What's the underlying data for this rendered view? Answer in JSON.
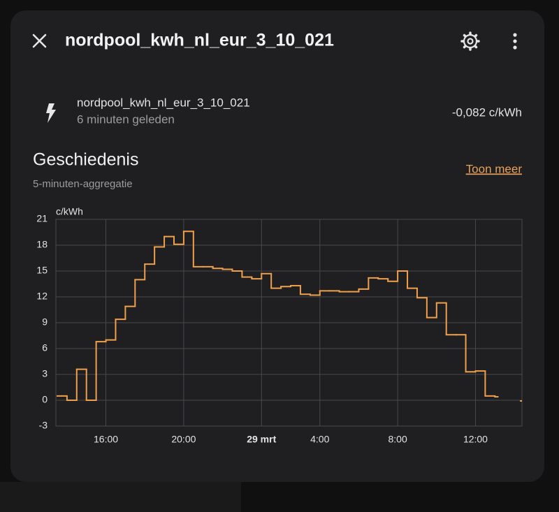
{
  "header": {
    "title": "nordpool_kwh_nl_eur_3_10_021"
  },
  "entity": {
    "name": "nordpool_kwh_nl_eur_3_10_021",
    "last_changed": "6 minuten geleden",
    "state": "-0,082 c/kWh"
  },
  "history": {
    "title": "Geschiedenis",
    "subtitle": "5-minuten-aggregatie",
    "more_link": "Toon meer"
  },
  "chart_data": {
    "type": "line",
    "step": true,
    "y_label": "c/kWh",
    "color": "#f0a04b",
    "grid": true,
    "x": [
      13.5,
      14.0,
      14.5,
      15.0,
      15.5,
      16.0,
      16.5,
      17.0,
      17.5,
      18.0,
      18.5,
      19.0,
      19.5,
      20.0,
      20.5,
      21.0,
      21.5,
      22.0,
      22.5,
      23.0,
      23.5,
      24.0,
      24.5,
      25.0,
      25.5,
      26.0,
      26.5,
      27.0,
      27.5,
      28.0,
      28.5,
      29.0,
      29.5,
      30.0,
      30.5,
      31.0,
      31.5,
      32.0,
      32.5,
      33.0,
      33.5,
      34.0,
      34.5,
      35.0,
      35.5,
      36.0,
      36.15,
      37.32
    ],
    "values": [
      0.5,
      0.0,
      3.6,
      0.0,
      6.8,
      7.0,
      9.4,
      10.9,
      14.0,
      15.8,
      17.8,
      19.0,
      18.1,
      19.6,
      15.5,
      15.5,
      15.3,
      15.2,
      15.0,
      14.3,
      14.1,
      14.7,
      13.0,
      13.2,
      13.3,
      12.3,
      12.2,
      12.7,
      12.7,
      12.6,
      12.6,
      12.9,
      14.2,
      14.1,
      13.8,
      15.0,
      13.0,
      11.9,
      9.6,
      11.3,
      7.6,
      7.6,
      3.3,
      3.4,
      0.5,
      0.4,
      null,
      -0.08
    ],
    "xlim": [
      13.43,
      37.39
    ],
    "ylim": [
      -3,
      21
    ],
    "xticks": [
      {
        "value": 16,
        "label": "16:00"
      },
      {
        "value": 20,
        "label": "20:00"
      },
      {
        "value": 24,
        "label": "29 mrt"
      },
      {
        "value": 27,
        "label": "4:00"
      },
      {
        "value": 31,
        "label": "8:00"
      },
      {
        "value": 35,
        "label": "12:00"
      }
    ],
    "yticks": [
      -3,
      0,
      3,
      6,
      9,
      12,
      15,
      18,
      21
    ]
  }
}
